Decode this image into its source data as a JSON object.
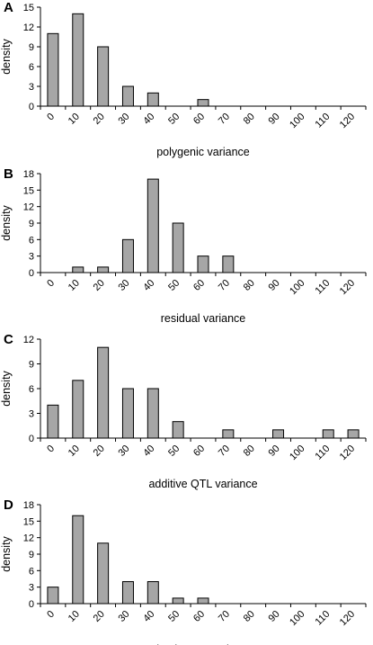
{
  "chart_data": [
    {
      "panel_label": "A",
      "type": "bar",
      "title": "",
      "xlabel": "polygenic variance",
      "ylabel": "density",
      "categories": [
        "0",
        "10",
        "20",
        "30",
        "40",
        "50",
        "60",
        "70",
        "80",
        "90",
        "100",
        "110",
        "120"
      ],
      "values": [
        11,
        14,
        9,
        3,
        2,
        0,
        1,
        0,
        0,
        0,
        0,
        0,
        0
      ],
      "ylim": [
        0,
        15
      ],
      "yticks": [
        "0",
        "3",
        "6",
        "9",
        "12",
        "15"
      ],
      "grid": false
    },
    {
      "panel_label": "B",
      "type": "bar",
      "title": "",
      "xlabel": "residual variance",
      "ylabel": "density",
      "categories": [
        "0",
        "10",
        "20",
        "30",
        "40",
        "50",
        "60",
        "70",
        "80",
        "90",
        "100",
        "110",
        "120"
      ],
      "values": [
        0,
        1,
        1,
        6,
        17,
        9,
        3,
        3,
        0,
        0,
        0,
        0,
        0
      ],
      "ylim": [
        0,
        18
      ],
      "yticks": [
        "0",
        "3",
        "6",
        "9",
        "12",
        "15",
        "18"
      ],
      "grid": false
    },
    {
      "panel_label": "C",
      "type": "bar",
      "title": "",
      "xlabel": "additive QTL variance",
      "ylabel": "density",
      "categories": [
        "0",
        "10",
        "20",
        "30",
        "40",
        "50",
        "60",
        "70",
        "80",
        "90",
        "100",
        "110",
        "120"
      ],
      "values": [
        4,
        7,
        11,
        6,
        6,
        2,
        0,
        1,
        0,
        1,
        0,
        1,
        1
      ],
      "ylim": [
        0,
        12
      ],
      "yticks": [
        "0",
        "3",
        "6",
        "9",
        "12"
      ],
      "grid": false
    },
    {
      "panel_label": "D",
      "type": "bar",
      "title": "",
      "xlabel": "dominance variance",
      "ylabel": "density",
      "categories": [
        "0",
        "10",
        "20",
        "30",
        "40",
        "50",
        "60",
        "70",
        "80",
        "90",
        "100",
        "110",
        "120"
      ],
      "values": [
        3,
        16,
        11,
        4,
        4,
        1,
        1,
        0,
        0,
        0,
        0,
        0,
        0
      ],
      "ylim": [
        0,
        18
      ],
      "yticks": [
        "0",
        "3",
        "6",
        "9",
        "12",
        "15",
        "18"
      ],
      "grid": false
    }
  ],
  "colors": {
    "bar_fill": "#a6a6a6",
    "bar_stroke": "#000000",
    "axis": "#000000"
  }
}
